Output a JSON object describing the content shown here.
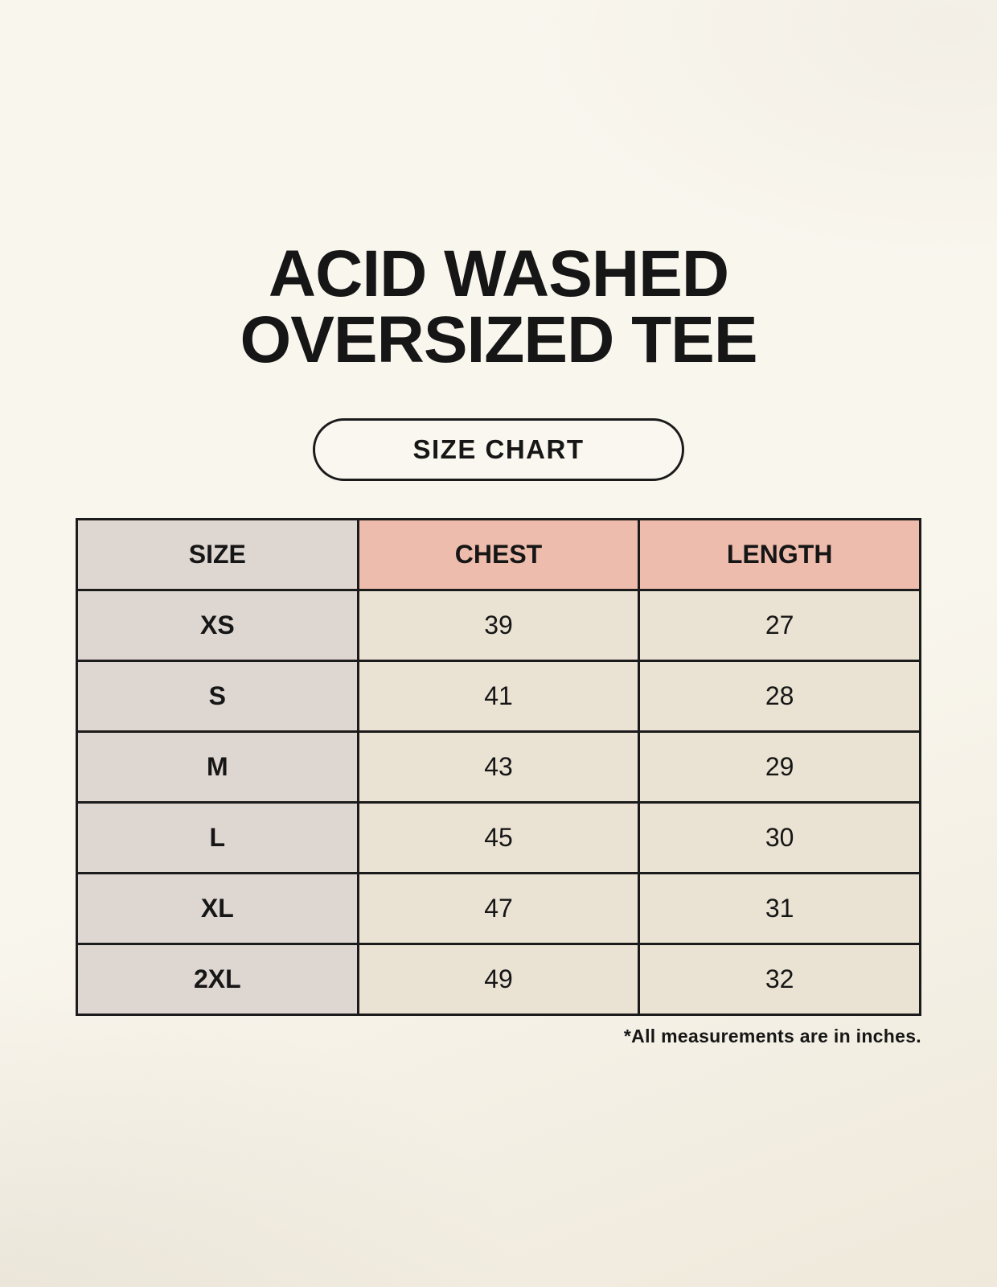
{
  "title": {
    "line1": "ACID WASHED",
    "line2": "OVERSIZED TEE"
  },
  "size_chart_button": {
    "label": "SIZE CHART"
  },
  "chart_data": {
    "type": "table",
    "title": "ACID WASHED OVERSIZED TEE size chart",
    "columns": [
      "SIZE",
      "CHEST",
      "LENGTH"
    ],
    "rows": [
      [
        "XS",
        "39",
        "27"
      ],
      [
        "S",
        "41",
        "28"
      ],
      [
        "M",
        "43",
        "29"
      ],
      [
        "L",
        "45",
        "30"
      ],
      [
        "XL",
        "47",
        "31"
      ],
      [
        "2XL",
        "49",
        "32"
      ]
    ],
    "units": "inches"
  },
  "footnote": "*All measurements are in inches.",
  "colors": {
    "background": "#f9f6ee",
    "size_column_bg": "#ded6d1",
    "header_accent_bg": "#eebcac",
    "data_cell_bg": "#eae3d4",
    "border": "#1b1b1b",
    "text": "#161616",
    "button_bg": "#faf7f0"
  }
}
